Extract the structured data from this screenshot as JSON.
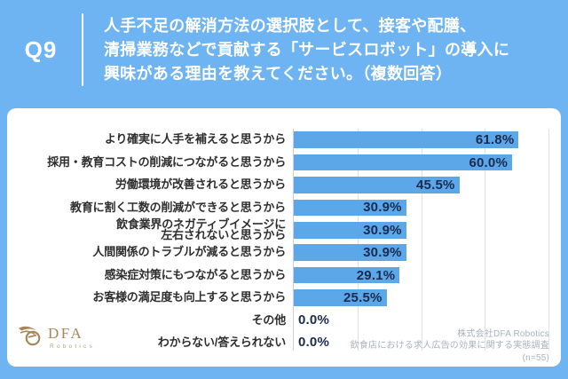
{
  "header": {
    "q_label": "Q9",
    "question_lines": [
      "人手不足の解消方法の選択肢として、接客や配膳、",
      "清掃業務などで貢献する「サービスロボット」の導入に",
      "興味がある理由を教えてください。（複数回答）"
    ]
  },
  "chart_data": {
    "type": "bar",
    "orientation": "horizontal",
    "title": "サービスロボットの導入に興味がある理由（複数回答）",
    "categories": [
      "より確実に人手を補えると思うから",
      "採用・教育コストの削減につながると思うから",
      "労働環境が改善されると思うから",
      "教育に割く工数の削減ができると思うから",
      "飲食業界のネガティブイメージに\n左右されないと思うから",
      "人間関係のトラブルが減ると思うから",
      "感染症対策にもつながると思うから",
      "お客様の満足度も向上すると思うから",
      "その他",
      "わからない/答えられない"
    ],
    "values": [
      61.8,
      60.0,
      45.5,
      30.9,
      30.9,
      30.9,
      29.1,
      25.5,
      0.0,
      0.0
    ],
    "value_labels": [
      "61.8%",
      "60.0%",
      "45.5%",
      "30.9%",
      "30.9%",
      "30.9%",
      "29.1%",
      "25.5%",
      "0.0%",
      "0.0%"
    ],
    "xlim": [
      0,
      70
    ],
    "gridline_interval": 17.5,
    "grid": "vertical",
    "legend": "none",
    "bar_color": "#5ca7e8",
    "value_label_color": "#1a2b50"
  },
  "footer": {
    "logo_name": "DFA",
    "logo_sub": "Robotics",
    "source_lines": [
      "株式会社DFA Robotics",
      "飲食店における求人広告の効果に関する実態調査",
      "(n=55)"
    ]
  },
  "colors": {
    "background": "#6fb4f2",
    "card": "#ffffff",
    "bar": "#5ca7e8",
    "value_text": "#1a2b50",
    "category_text": "#2e2e2e",
    "source_text": "#a9b2bd",
    "logo_gold": "#a8865a"
  }
}
